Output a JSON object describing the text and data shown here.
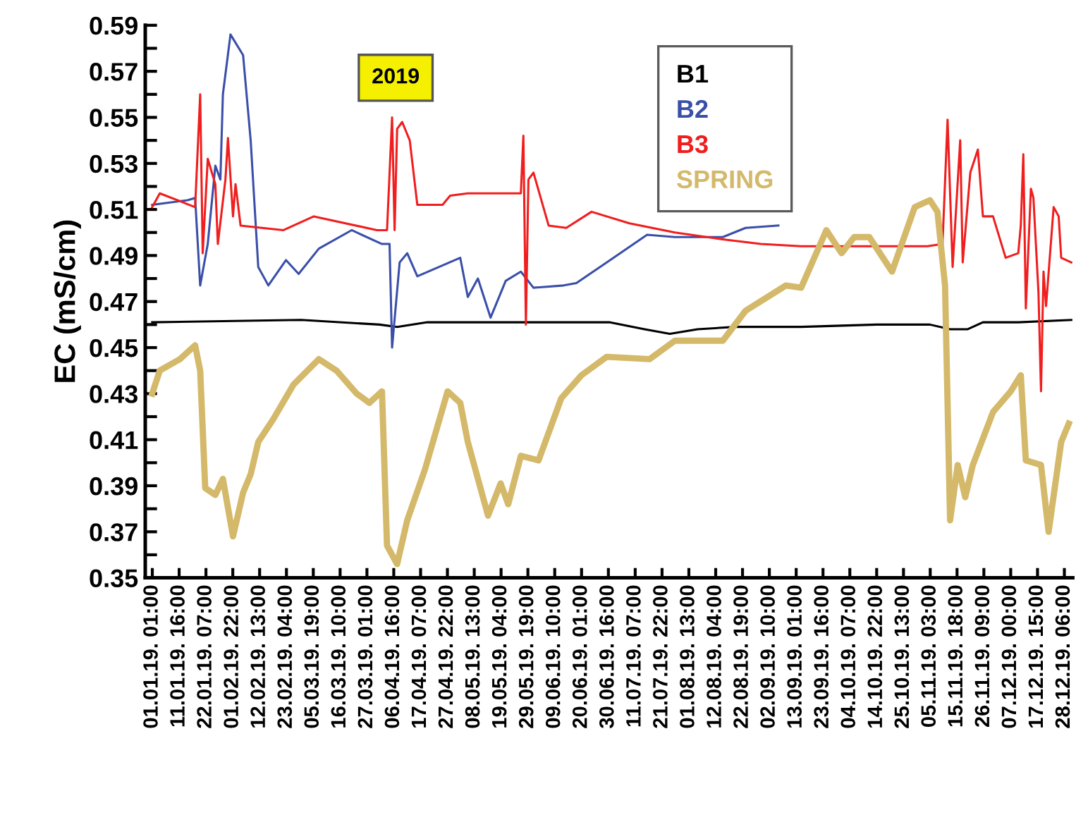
{
  "chart_data": {
    "type": "line",
    "ylabel": "EC (mS/cm)",
    "annotations": [
      "2019"
    ],
    "legend": "top",
    "grid": false,
    "marker": "none",
    "line_style": "solid",
    "xlim": [
      "2018-12-29T06:00",
      "2019-12-31T14:00"
    ],
    "ylim": [
      0.35,
      0.59
    ],
    "yticks": [
      0.35,
      {
        "value": 0.36,
        "label": null
      },
      0.37,
      {
        "value": 0.38,
        "label": null
      },
      0.39,
      {
        "value": 0.4,
        "label": null
      },
      0.41,
      {
        "value": 0.42,
        "label": null
      },
      0.43,
      {
        "value": 0.44,
        "label": null
      },
      0.45,
      {
        "value": 0.46,
        "label": null
      },
      0.47,
      {
        "value": 0.48,
        "label": null
      },
      0.49,
      {
        "value": 0.5,
        "label": null
      },
      0.51,
      {
        "value": 0.52,
        "label": null
      },
      0.53,
      {
        "value": 0.54,
        "label": null
      },
      0.55,
      {
        "value": 0.56,
        "label": null
      },
      0.57,
      {
        "value": 0.58,
        "label": null
      },
      0.59
    ],
    "xticks": [
      {
        "value": "2019-01-01T01:00",
        "label": "01.01.19. 01:00"
      },
      {
        "value": "2019-01-11T16:00",
        "label": "11.01.19. 16:00"
      },
      {
        "value": "2019-01-22T07:00",
        "label": "22.01.19. 07:00"
      },
      {
        "value": "2019-02-01T22:00",
        "label": "01.02.19. 22:00"
      },
      {
        "value": "2019-02-12T13:00",
        "label": "12.02.19. 13:00"
      },
      {
        "value": "2019-02-23T04:00",
        "label": "23.02.19. 04:00"
      },
      {
        "value": "2019-03-05T19:00",
        "label": "05.03.19. 19:00"
      },
      {
        "value": "2019-03-16T10:00",
        "label": "16.03.19. 10:00"
      },
      {
        "value": "2019-03-27T01:00",
        "label": "27.03.19. 01:00"
      },
      {
        "value": "2019-04-06T16:00",
        "label": "06.04.19. 16:00"
      },
      {
        "value": "2019-04-17T07:00",
        "label": "17.04.19. 07:00"
      },
      {
        "value": "2019-04-27T22:00",
        "label": "27.04.19. 22:00"
      },
      {
        "value": "2019-05-08T13:00",
        "label": "08.05.19. 13:00"
      },
      {
        "value": "2019-05-19T04:00",
        "label": "19.05.19. 04:00"
      },
      {
        "value": "2019-05-29T19:00",
        "label": "29.05.19. 19:00"
      },
      {
        "value": "2019-06-09T10:00",
        "label": "09.06.19. 10:00"
      },
      {
        "value": "2019-06-20T01:00",
        "label": "20.06.19. 01:00"
      },
      {
        "value": "2019-06-30T16:00",
        "label": "30.06.19. 16:00"
      },
      {
        "value": "2019-07-11T07:00",
        "label": "11.07.19. 07:00"
      },
      {
        "value": "2019-07-21T22:00",
        "label": "21.07.19. 22:00"
      },
      {
        "value": "2019-08-01T13:00",
        "label": "01.08.19. 13:00"
      },
      {
        "value": "2019-08-12T04:00",
        "label": "12.08.19. 04:00"
      },
      {
        "value": "2019-08-22T19:00",
        "label": "22.08.19. 19:00"
      },
      {
        "value": "2019-09-02T10:00",
        "label": "02.09.19. 10:00"
      },
      {
        "value": "2019-09-13T01:00",
        "label": "13.09.19. 01:00"
      },
      {
        "value": "2019-09-23T16:00",
        "label": "23.09.19. 16:00"
      },
      {
        "value": "2019-10-04T07:00",
        "label": "04.10.19. 07:00"
      },
      {
        "value": "2019-10-14T22:00",
        "label": "14.10.19. 22:00"
      },
      {
        "value": "2019-10-25T13:00",
        "label": "25.10.19. 13:00"
      },
      {
        "value": "2019-11-05T03:00",
        "label": "05.11.19. 03:00"
      },
      {
        "value": "2019-11-15T18:00",
        "label": "15.11.19. 18:00"
      },
      {
        "value": "2019-11-26T09:00",
        "label": "26.11.19. 09:00"
      },
      {
        "value": "2019-12-07T00:00",
        "label": "07.12.19. 00:00"
      },
      {
        "value": "2019-12-17T15:00",
        "label": "17.12.19. 15:00"
      },
      {
        "value": "2019-12-28T06:00",
        "label": "28.12.19. 06:00"
      }
    ],
    "series": [
      {
        "name": "B1",
        "color": "#000000",
        "x": [
          "2019-01-01",
          "2019-03-01",
          "2019-04-01",
          "2019-04-08",
          "2019-04-20",
          "2019-06-01",
          "2019-07-01",
          "2019-07-15",
          "2019-07-25",
          "2019-08-05",
          "2019-08-20",
          "2019-09-15",
          "2019-10-15",
          "2019-11-05",
          "2019-11-13",
          "2019-11-20",
          "2019-11-26",
          "2019-12-10",
          "2019-12-31"
        ],
        "values": [
          0.461,
          0.462,
          0.46,
          0.459,
          0.461,
          0.461,
          0.461,
          0.458,
          0.456,
          0.458,
          0.459,
          0.459,
          0.46,
          0.46,
          0.458,
          0.458,
          0.461,
          0.461,
          0.462
        ]
      },
      {
        "name": "B2",
        "color": "#3a4fa8",
        "x": [
          "2019-01-01",
          "2019-01-15",
          "2019-01-18",
          "2019-01-20",
          "2019-01-23",
          "2019-01-26",
          "2019-01-28",
          "2019-01-29",
          "2019-02-01",
          "2019-02-06",
          "2019-02-09",
          "2019-02-12",
          "2019-02-16",
          "2019-02-23",
          "2019-02-28",
          "2019-03-08",
          "2019-03-21",
          "2019-04-02",
          "2019-04-05",
          "2019-04-06",
          "2019-04-09",
          "2019-04-12",
          "2019-04-16",
          "2019-05-03",
          "2019-05-06",
          "2019-05-10",
          "2019-05-15",
          "2019-05-21",
          "2019-05-27",
          "2019-06-01",
          "2019-06-13",
          "2019-06-18",
          "2019-06-30",
          "2019-07-16",
          "2019-07-27",
          "2019-08-15",
          "2019-08-24",
          "2019-09-06"
        ],
        "values": [
          0.512,
          0.514,
          0.515,
          0.477,
          0.495,
          0.529,
          0.523,
          0.56,
          0.586,
          0.577,
          0.54,
          0.485,
          0.477,
          0.488,
          0.482,
          0.493,
          0.501,
          0.495,
          0.495,
          0.45,
          0.487,
          0.491,
          0.481,
          0.489,
          0.472,
          0.48,
          0.463,
          0.479,
          0.483,
          0.476,
          0.477,
          0.478,
          0.487,
          0.499,
          0.498,
          0.498,
          0.502,
          0.503
        ]
      },
      {
        "name": "B3",
        "color": "#f01e1e",
        "x": [
          "2019-01-01",
          "2019-01-04",
          "2019-01-18",
          "2019-01-20",
          "2019-01-21",
          "2019-01-23",
          "2019-01-26",
          "2019-01-27",
          "2019-01-30",
          "2019-01-31",
          "2019-02-02",
          "2019-02-03",
          "2019-02-05",
          "2019-02-22",
          "2019-03-06",
          "2019-03-31",
          "2019-04-04",
          "2019-04-06",
          "2019-04-07",
          "2019-04-08",
          "2019-04-10",
          "2019-04-13",
          "2019-04-16",
          "2019-04-26",
          "2019-04-29",
          "2019-05-06",
          "2019-05-27",
          "2019-05-28",
          "2019-05-29",
          "2019-05-30",
          "2019-06-01",
          "2019-06-07",
          "2019-06-14",
          "2019-06-24",
          "2019-07-09",
          "2019-07-27",
          "2019-08-15",
          "2019-08-30",
          "2019-09-15",
          "2019-11-04",
          "2019-11-10",
          "2019-11-12",
          "2019-11-14",
          "2019-11-17",
          "2019-11-18",
          "2019-11-21",
          "2019-11-24",
          "2019-11-26",
          "2019-11-30",
          "2019-12-05",
          "2019-12-10",
          "2019-12-11",
          "2019-12-12",
          "2019-12-13",
          "2019-12-15",
          "2019-12-16",
          "2019-12-18",
          "2019-12-19",
          "2019-12-20",
          "2019-12-21",
          "2019-12-24",
          "2019-12-26",
          "2019-12-27",
          "2019-12-31"
        ],
        "values": [
          0.511,
          0.517,
          0.511,
          0.56,
          0.491,
          0.532,
          0.521,
          0.495,
          0.523,
          0.541,
          0.507,
          0.521,
          0.503,
          0.501,
          0.507,
          0.501,
          0.501,
          0.55,
          0.501,
          0.545,
          0.548,
          0.54,
          0.512,
          0.512,
          0.516,
          0.517,
          0.517,
          0.542,
          0.46,
          0.523,
          0.526,
          0.503,
          0.502,
          0.509,
          0.504,
          0.5,
          0.497,
          0.495,
          0.494,
          0.494,
          0.495,
          0.549,
          0.485,
          0.54,
          0.487,
          0.526,
          0.536,
          0.507,
          0.507,
          0.489,
          0.491,
          0.503,
          0.534,
          0.467,
          0.519,
          0.515,
          0.474,
          0.431,
          0.483,
          0.468,
          0.511,
          0.507,
          0.489,
          0.487
        ]
      },
      {
        "name": "SPRING",
        "color": "#d4b96a",
        "x": [
          "2019-01-01",
          "2019-01-04",
          "2019-01-12",
          "2019-01-18",
          "2019-01-20",
          "2019-01-22",
          "2019-01-26",
          "2019-01-29",
          "2019-02-02",
          "2019-02-06",
          "2019-02-09",
          "2019-02-12",
          "2019-02-18",
          "2019-02-26",
          "2019-03-08",
          "2019-03-15",
          "2019-03-23",
          "2019-03-28",
          "2019-04-02",
          "2019-04-04",
          "2019-04-08",
          "2019-04-12",
          "2019-04-19",
          "2019-04-28",
          "2019-05-03",
          "2019-05-06",
          "2019-05-14",
          "2019-05-19",
          "2019-05-22",
          "2019-05-27",
          "2019-06-03",
          "2019-06-12",
          "2019-06-20",
          "2019-06-30",
          "2019-07-17",
          "2019-07-27",
          "2019-08-15",
          "2019-08-24",
          "2019-09-09",
          "2019-09-15",
          "2019-09-25",
          "2019-10-01",
          "2019-10-06",
          "2019-10-12",
          "2019-10-21",
          "2019-10-30",
          "2019-11-05",
          "2019-11-08",
          "2019-11-11",
          "2019-11-13",
          "2019-11-16",
          "2019-11-19",
          "2019-11-22",
          "2019-11-30",
          "2019-12-07",
          "2019-12-11",
          "2019-12-13",
          "2019-12-19",
          "2019-12-22",
          "2019-12-27",
          "2019-12-30"
        ],
        "values": [
          0.43,
          0.44,
          0.445,
          0.451,
          0.44,
          0.389,
          0.386,
          0.393,
          0.368,
          0.387,
          0.395,
          0.409,
          0.419,
          0.434,
          0.445,
          0.44,
          0.43,
          0.426,
          0.431,
          0.364,
          0.356,
          0.375,
          0.397,
          0.431,
          0.426,
          0.409,
          0.377,
          0.391,
          0.382,
          0.403,
          0.401,
          0.428,
          0.438,
          0.446,
          0.445,
          0.453,
          0.453,
          0.466,
          0.477,
          0.476,
          0.501,
          0.491,
          0.498,
          0.498,
          0.483,
          0.511,
          0.514,
          0.509,
          0.477,
          0.375,
          0.399,
          0.385,
          0.399,
          0.422,
          0.431,
          0.438,
          0.401,
          0.399,
          0.37,
          0.409,
          0.417
        ]
      }
    ]
  }
}
